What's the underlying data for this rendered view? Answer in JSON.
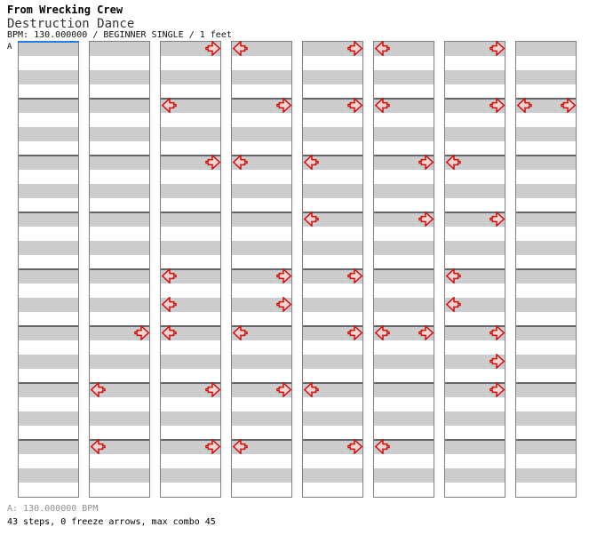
{
  "header": {
    "group_title": "From Wrecking Crew",
    "song_title": "Destruction Dance",
    "meta_line": "BPM: 130.000000 / BEGINNER SINGLE / 1 feet"
  },
  "section_marker": "A",
  "footer": {
    "bpm_sections": "A: 130.000000 BPM",
    "stats_line": "43 steps, 0 freeze arrows, max combo 45"
  },
  "colors": {
    "row_gray": "#cccccc",
    "column_border": "#808080",
    "measure_line": "#666666",
    "section_line_blue": "#2b7bd6",
    "arrow_outline_red": "#cc1111",
    "arrow_fill_pink": "#f8d3d3",
    "footer_gray": "#909090"
  },
  "chart_data": {
    "type": "ddr_step_chart",
    "bpm": "130.000000",
    "difficulty": "BEGINNER SINGLE",
    "feet": 1,
    "steps": 43,
    "freeze_arrows": 0,
    "max_combo": 45,
    "columns": 8,
    "measures_per_column": 8,
    "rows_per_measure": 4,
    "arrows": [
      {
        "col": 2,
        "row": 20,
        "dir": "right"
      },
      {
        "col": 2,
        "row": 24,
        "dir": "left"
      },
      {
        "col": 2,
        "row": 28,
        "dir": "left"
      },
      {
        "col": 3,
        "row": 0,
        "dir": "right"
      },
      {
        "col": 3,
        "row": 4,
        "dir": "left"
      },
      {
        "col": 3,
        "row": 8,
        "dir": "right"
      },
      {
        "col": 3,
        "row": 16,
        "dir": "left"
      },
      {
        "col": 3,
        "row": 18,
        "dir": "left"
      },
      {
        "col": 3,
        "row": 20,
        "dir": "left"
      },
      {
        "col": 3,
        "row": 24,
        "dir": "right"
      },
      {
        "col": 3,
        "row": 28,
        "dir": "right"
      },
      {
        "col": 4,
        "row": 0,
        "dir": "left"
      },
      {
        "col": 4,
        "row": 4,
        "dir": "right"
      },
      {
        "col": 4,
        "row": 8,
        "dir": "left"
      },
      {
        "col": 4,
        "row": 16,
        "dir": "right"
      },
      {
        "col": 4,
        "row": 18,
        "dir": "right"
      },
      {
        "col": 4,
        "row": 20,
        "dir": "left"
      },
      {
        "col": 4,
        "row": 24,
        "dir": "right"
      },
      {
        "col": 4,
        "row": 28,
        "dir": "left"
      },
      {
        "col": 5,
        "row": 0,
        "dir": "right"
      },
      {
        "col": 5,
        "row": 4,
        "dir": "right"
      },
      {
        "col": 5,
        "row": 8,
        "dir": "left"
      },
      {
        "col": 5,
        "row": 12,
        "dir": "left"
      },
      {
        "col": 5,
        "row": 16,
        "dir": "right"
      },
      {
        "col": 5,
        "row": 20,
        "dir": "right"
      },
      {
        "col": 5,
        "row": 24,
        "dir": "left"
      },
      {
        "col": 5,
        "row": 28,
        "dir": "right"
      },
      {
        "col": 6,
        "row": 0,
        "dir": "left"
      },
      {
        "col": 6,
        "row": 4,
        "dir": "left"
      },
      {
        "col": 6,
        "row": 8,
        "dir": "right"
      },
      {
        "col": 6,
        "row": 12,
        "dir": "right"
      },
      {
        "col": 6,
        "row": 20,
        "dir": "left"
      },
      {
        "col": 6,
        "row": 20,
        "dir": "right"
      },
      {
        "col": 6,
        "row": 28,
        "dir": "left"
      },
      {
        "col": 7,
        "row": 0,
        "dir": "right"
      },
      {
        "col": 7,
        "row": 4,
        "dir": "right"
      },
      {
        "col": 7,
        "row": 8,
        "dir": "left"
      },
      {
        "col": 7,
        "row": 12,
        "dir": "right"
      },
      {
        "col": 7,
        "row": 16,
        "dir": "left"
      },
      {
        "col": 7,
        "row": 18,
        "dir": "left"
      },
      {
        "col": 7,
        "row": 20,
        "dir": "right"
      },
      {
        "col": 7,
        "row": 22,
        "dir": "right"
      },
      {
        "col": 7,
        "row": 24,
        "dir": "right"
      },
      {
        "col": 8,
        "row": 4,
        "dir": "left"
      },
      {
        "col": 8,
        "row": 4,
        "dir": "right"
      }
    ]
  }
}
